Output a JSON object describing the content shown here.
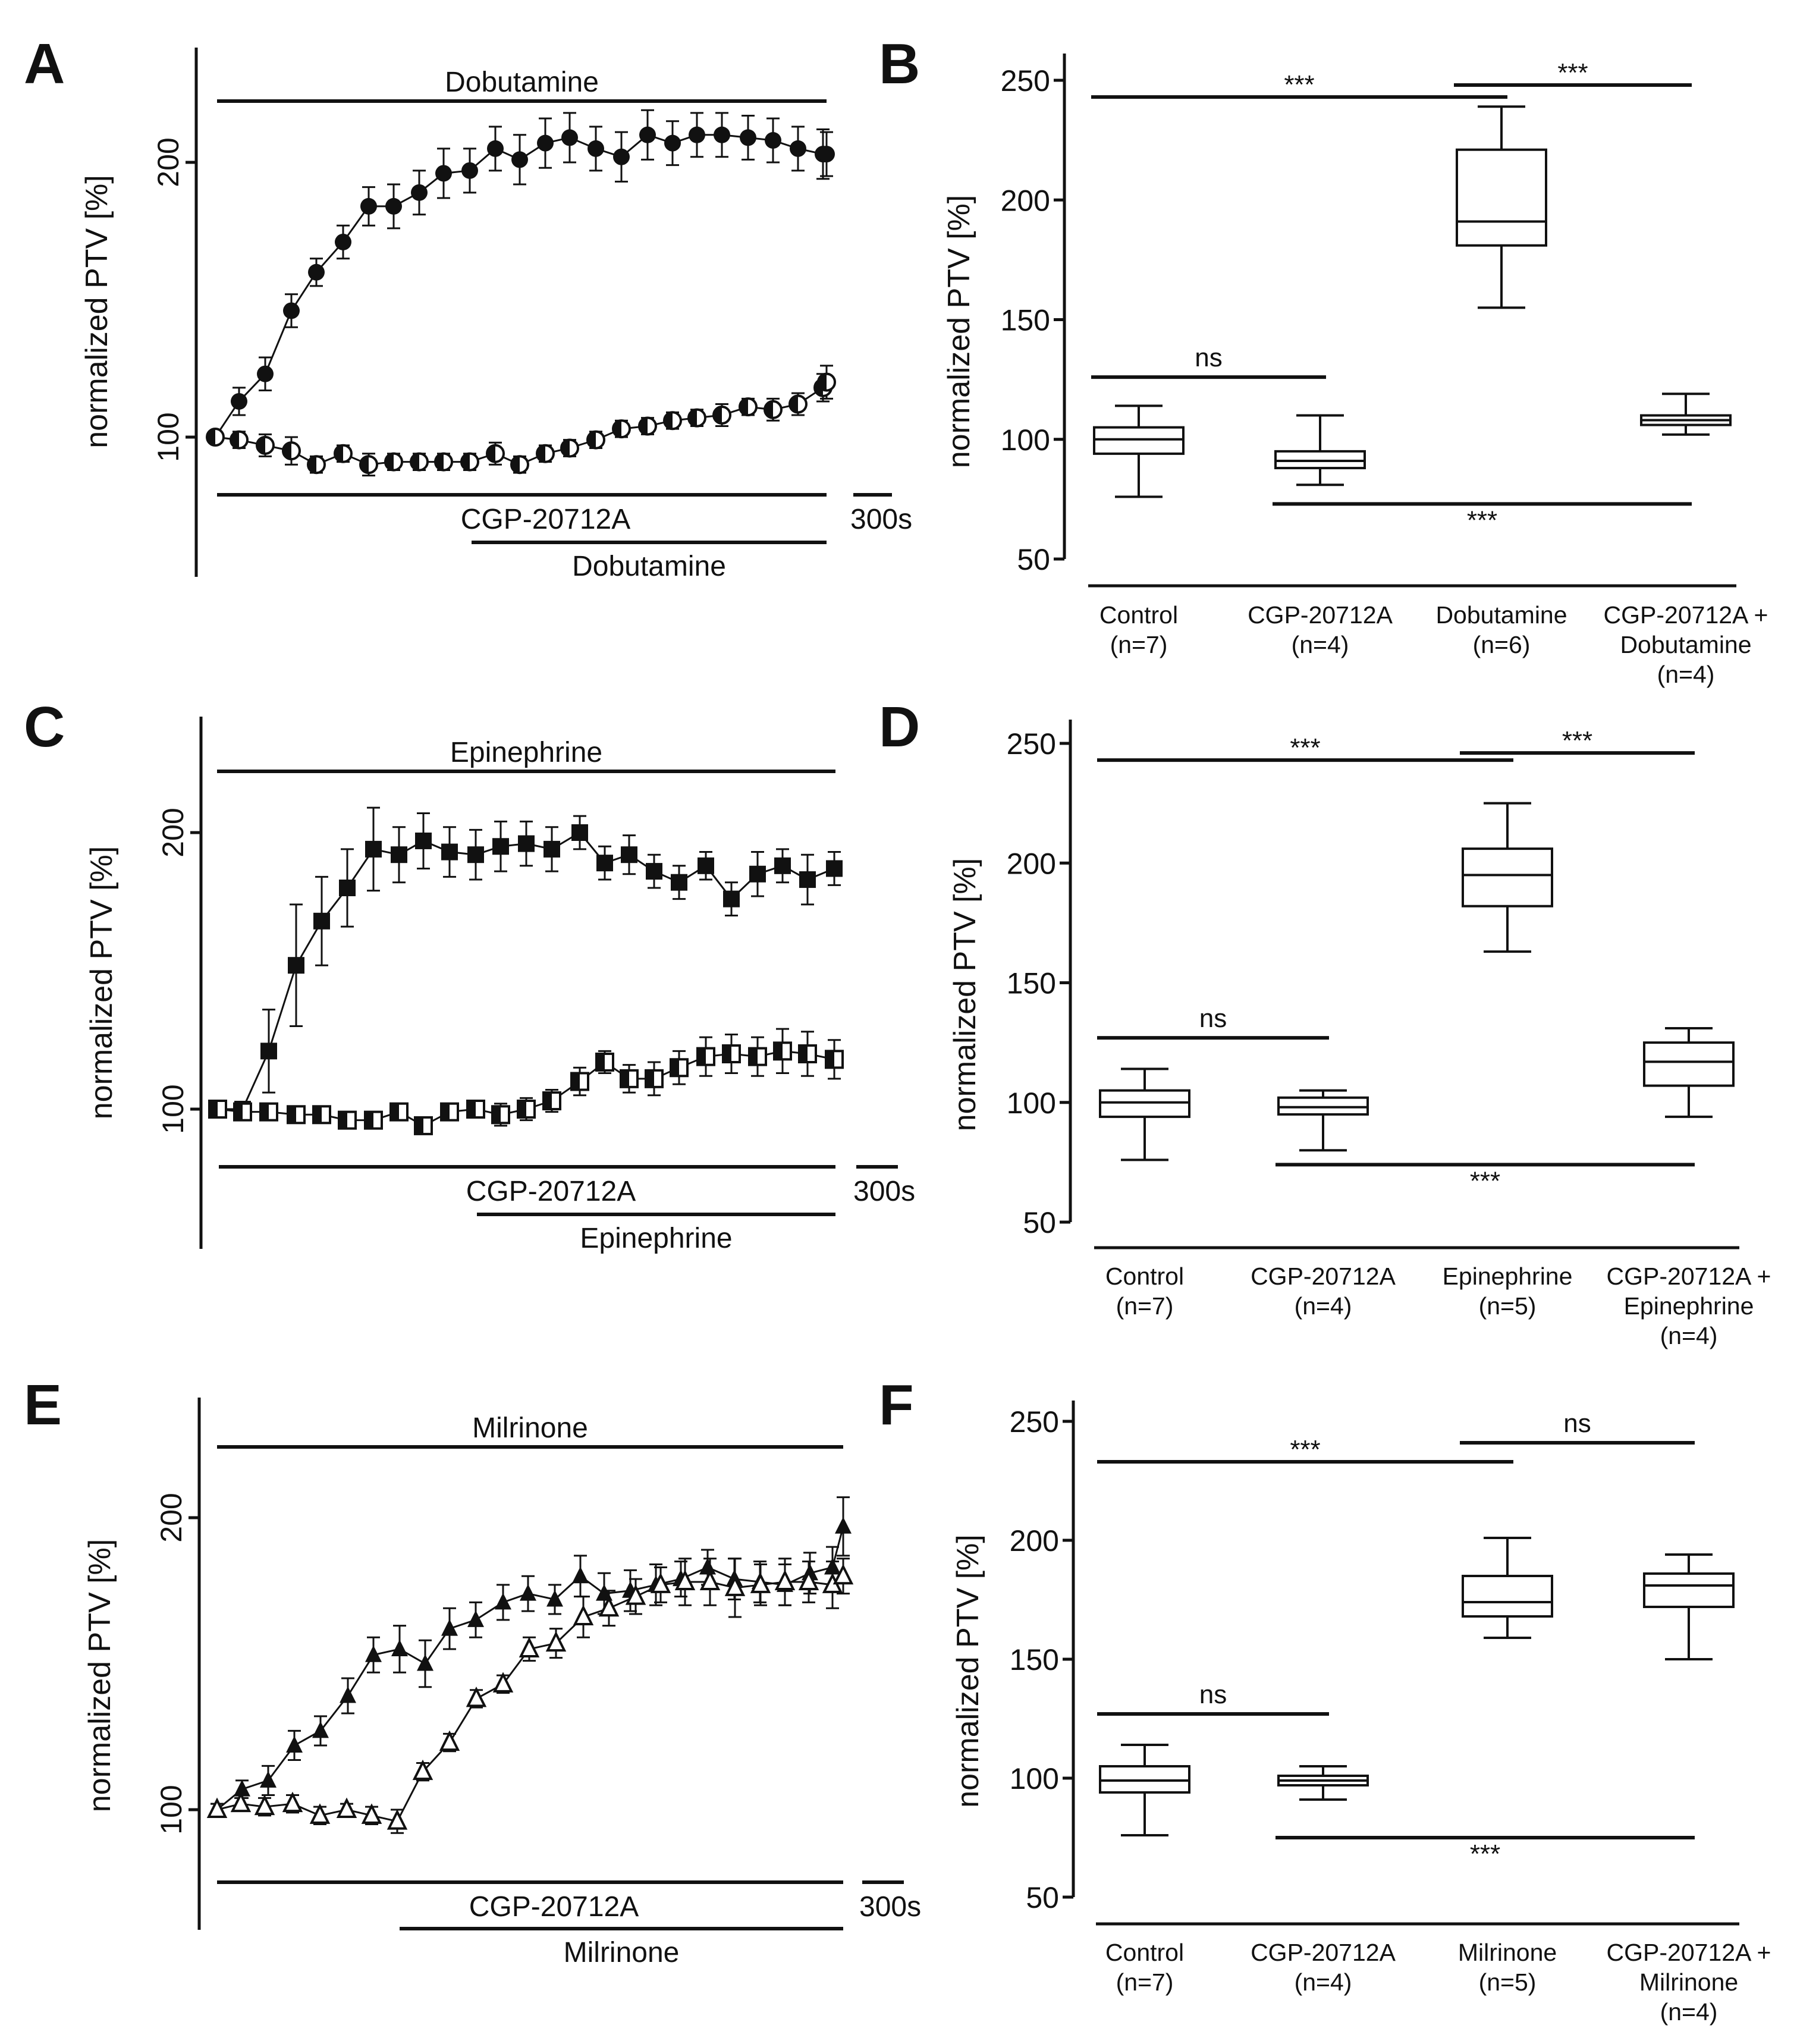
{
  "figure": {
    "ylabel": "normalized PTV [%]",
    "scale_label": "300s"
  },
  "chart_data": [
    {
      "panel": "A",
      "type": "line",
      "ylabel": "normalized PTV [%]",
      "yticks": [
        100,
        200
      ],
      "ylim": [
        50,
        240
      ],
      "n_points": 35,
      "top_bar_label": "Dobutamine",
      "bottom_bar1_label": "CGP-20712A",
      "bottom_bar2_label": "Dobutamine",
      "scale_label": "300s",
      "series": [
        {
          "name": "Dobutamine",
          "marker": "filled-circle",
          "values": [
            100,
            113,
            123,
            146,
            160,
            171,
            184,
            184,
            189,
            196,
            197,
            205,
            201,
            207,
            209,
            205,
            202,
            210,
            207,
            210,
            210,
            209,
            208,
            205,
            203,
            203
          ],
          "errors": [
            2,
            5,
            6,
            6,
            5,
            6,
            7,
            8,
            8,
            9,
            8,
            8,
            9,
            9,
            9,
            8,
            9,
            9,
            8,
            8,
            8,
            8,
            8,
            8,
            9,
            8
          ]
        },
        {
          "name": "CGP-20712A + Dobutamine",
          "marker": "half-circle",
          "values": [
            100,
            99,
            97,
            95,
            90,
            94,
            90,
            91,
            91,
            91,
            91,
            94,
            90,
            94,
            96,
            99,
            103,
            104,
            106,
            107,
            108,
            111,
            110,
            112,
            118,
            120
          ],
          "errors": [
            2,
            3,
            4,
            5,
            3,
            3,
            4,
            3,
            3,
            3,
            3,
            4,
            3,
            3,
            3,
            3,
            3,
            3,
            3,
            3,
            4,
            3,
            4,
            4,
            5,
            6
          ],
          "x_offset": 0
        }
      ]
    },
    {
      "panel": "B",
      "type": "box",
      "ylabel": "normalized PTV [%]",
      "yticks": [
        50,
        100,
        150,
        200,
        250
      ],
      "ylim": [
        50,
        250
      ],
      "categories": [
        "Control\n(n=7)",
        "CGP-20712A\n(n=4)",
        "Dobutamine\n(n=6)",
        "CGP-20712A +\nDobutamine\n(n=4)"
      ],
      "boxes": [
        {
          "min": 76,
          "q1": 94,
          "median": 100,
          "q3": 105,
          "max": 114
        },
        {
          "min": 81,
          "q1": 88,
          "median": 91,
          "q3": 95,
          "max": 110
        },
        {
          "min": 155,
          "q1": 181,
          "median": 191,
          "q3": 221,
          "max": 239
        },
        {
          "min": 102,
          "q1": 106,
          "median": 108,
          "q3": 110,
          "max": 119
        }
      ],
      "sig": [
        {
          "from": 0,
          "to": 2,
          "y": 243,
          "label": "***",
          "label_pos": "above"
        },
        {
          "from": 2,
          "to": 3,
          "y": 248,
          "label": "***",
          "label_pos": "above"
        },
        {
          "from": 0,
          "to": 1,
          "y": 126,
          "label": "ns",
          "label_pos": "above"
        },
        {
          "from": 1,
          "to": 3,
          "y": 73,
          "label": "***",
          "label_pos": "below"
        }
      ]
    },
    {
      "panel": "C",
      "type": "line",
      "ylabel": "normalized PTV [%]",
      "yticks": [
        100,
        200
      ],
      "ylim": [
        50,
        240
      ],
      "n_points": 35,
      "top_bar_label": "Epinephrine",
      "bottom_bar1_label": "CGP-20712A",
      "bottom_bar2_label": "Epinephrine",
      "scale_label": "300s",
      "series": [
        {
          "name": "Epinephrine",
          "marker": "filled-square",
          "values": [
            100,
            100,
            121,
            152,
            168,
            180,
            194,
            192,
            197,
            193,
            192,
            195,
            196,
            194,
            200,
            189,
            192,
            186,
            182,
            188,
            176,
            185,
            188,
            183,
            187
          ],
          "errors": [
            1,
            2,
            15,
            22,
            16,
            14,
            15,
            10,
            10,
            9,
            9,
            9,
            8,
            8,
            6,
            6,
            7,
            6,
            6,
            5,
            6,
            8,
            6,
            9,
            6
          ]
        },
        {
          "name": "CGP-20712A + Epinephrine",
          "marker": "half-square",
          "values": [
            100,
            99,
            99,
            98,
            98,
            96,
            96,
            99,
            94,
            99,
            100,
            98,
            100,
            103,
            110,
            117,
            111,
            111,
            115,
            119,
            120,
            119,
            121,
            120,
            118
          ],
          "errors": [
            2,
            2,
            3,
            2,
            2,
            2,
            2,
            2,
            3,
            3,
            3,
            4,
            4,
            4,
            5,
            4,
            5,
            6,
            6,
            7,
            7,
            7,
            8,
            8,
            7
          ]
        }
      ]
    },
    {
      "panel": "D",
      "type": "box",
      "ylabel": "normalized PTV [%]",
      "yticks": [
        50,
        100,
        150,
        200,
        250
      ],
      "ylim": [
        50,
        250
      ],
      "categories": [
        "Control\n(n=7)",
        "CGP-20712A\n(n=4)",
        "Epinephrine\n(n=5)",
        "CGP-20712A +\nEpinephrine\n(n=4)"
      ],
      "boxes": [
        {
          "min": 76,
          "q1": 94,
          "median": 100,
          "q3": 105,
          "max": 114
        },
        {
          "min": 80,
          "q1": 95,
          "median": 98,
          "q3": 102,
          "max": 105
        },
        {
          "min": 163,
          "q1": 182,
          "median": 195,
          "q3": 206,
          "max": 225
        },
        {
          "min": 94,
          "q1": 107,
          "median": 117,
          "q3": 125,
          "max": 131
        }
      ],
      "sig": [
        {
          "from": 0,
          "to": 2,
          "y": 243,
          "label": "***",
          "label_pos": "above"
        },
        {
          "from": 2,
          "to": 3,
          "y": 246,
          "label": "***",
          "label_pos": "above"
        },
        {
          "from": 0,
          "to": 1,
          "y": 127,
          "label": "ns",
          "label_pos": "above"
        },
        {
          "from": 1,
          "to": 3,
          "y": 74,
          "label": "***",
          "label_pos": "below"
        }
      ]
    },
    {
      "panel": "E",
      "type": "line",
      "ylabel": "normalized PTV [%]",
      "yticks": [
        100,
        200
      ],
      "ylim": [
        60,
        240
      ],
      "n_points": 35,
      "top_bar_label": "Milrinone",
      "bottom_bar1_label": "CGP-20712A",
      "bottom_bar2_label": "Milrinone",
      "scale_label": "300s",
      "series": [
        {
          "name": "Milrinone",
          "marker": "filled-triangle",
          "values": [
            100,
            107,
            110,
            122,
            127,
            139,
            153,
            155,
            150,
            162,
            165,
            171,
            174,
            172,
            180,
            174,
            175,
            177,
            179,
            183,
            179,
            178,
            177,
            181,
            183,
            197
          ],
          "errors": [
            2,
            3,
            5,
            5,
            5,
            6,
            6,
            8,
            8,
            7,
            6,
            6,
            6,
            5,
            7,
            7,
            7,
            7,
            6,
            6,
            7,
            7,
            7,
            7,
            7,
            10
          ]
        },
        {
          "name": "CGP-20712A + Milrinone",
          "marker": "open-triangle",
          "x_offset": 0,
          "values": [
            100,
            102,
            101,
            102,
            98,
            100,
            98,
            96,
            113,
            123,
            138,
            143,
            155,
            157,
            166,
            169,
            173,
            177,
            178,
            178,
            176,
            177,
            178,
            178,
            177,
            180
          ],
          "errors": [
            2,
            2,
            3,
            3,
            3,
            2,
            3,
            4,
            3,
            3,
            3,
            3,
            4,
            5,
            7,
            6,
            6,
            6,
            8,
            8,
            10,
            7,
            8,
            7,
            8,
            6
          ]
        }
      ]
    },
    {
      "panel": "F",
      "type": "box",
      "ylabel": "normalized PTV [%]",
      "yticks": [
        50,
        100,
        150,
        200,
        250
      ],
      "ylim": [
        50,
        250
      ],
      "categories": [
        "Control\n(n=7)",
        "CGP-20712A\n(n=4)",
        "Milrinone\n(n=5)",
        "CGP-20712A +\nMilrinone\n(n=4)"
      ],
      "boxes": [
        {
          "min": 76,
          "q1": 94,
          "median": 99,
          "q3": 105,
          "max": 114
        },
        {
          "min": 91,
          "q1": 97,
          "median": 99,
          "q3": 101,
          "max": 105
        },
        {
          "min": 159,
          "q1": 168,
          "median": 174,
          "q3": 185,
          "max": 201
        },
        {
          "min": 150,
          "q1": 172,
          "median": 181,
          "q3": 186,
          "max": 194
        }
      ],
      "sig": [
        {
          "from": 0,
          "to": 2,
          "y": 233,
          "label": "***",
          "label_pos": "above"
        },
        {
          "from": 2,
          "to": 3,
          "y": 241,
          "label": "ns",
          "label_pos": "above"
        },
        {
          "from": 0,
          "to": 1,
          "y": 127,
          "label": "ns",
          "label_pos": "above"
        },
        {
          "from": 1,
          "to": 3,
          "y": 75,
          "label": "***",
          "label_pos": "below"
        }
      ]
    }
  ]
}
